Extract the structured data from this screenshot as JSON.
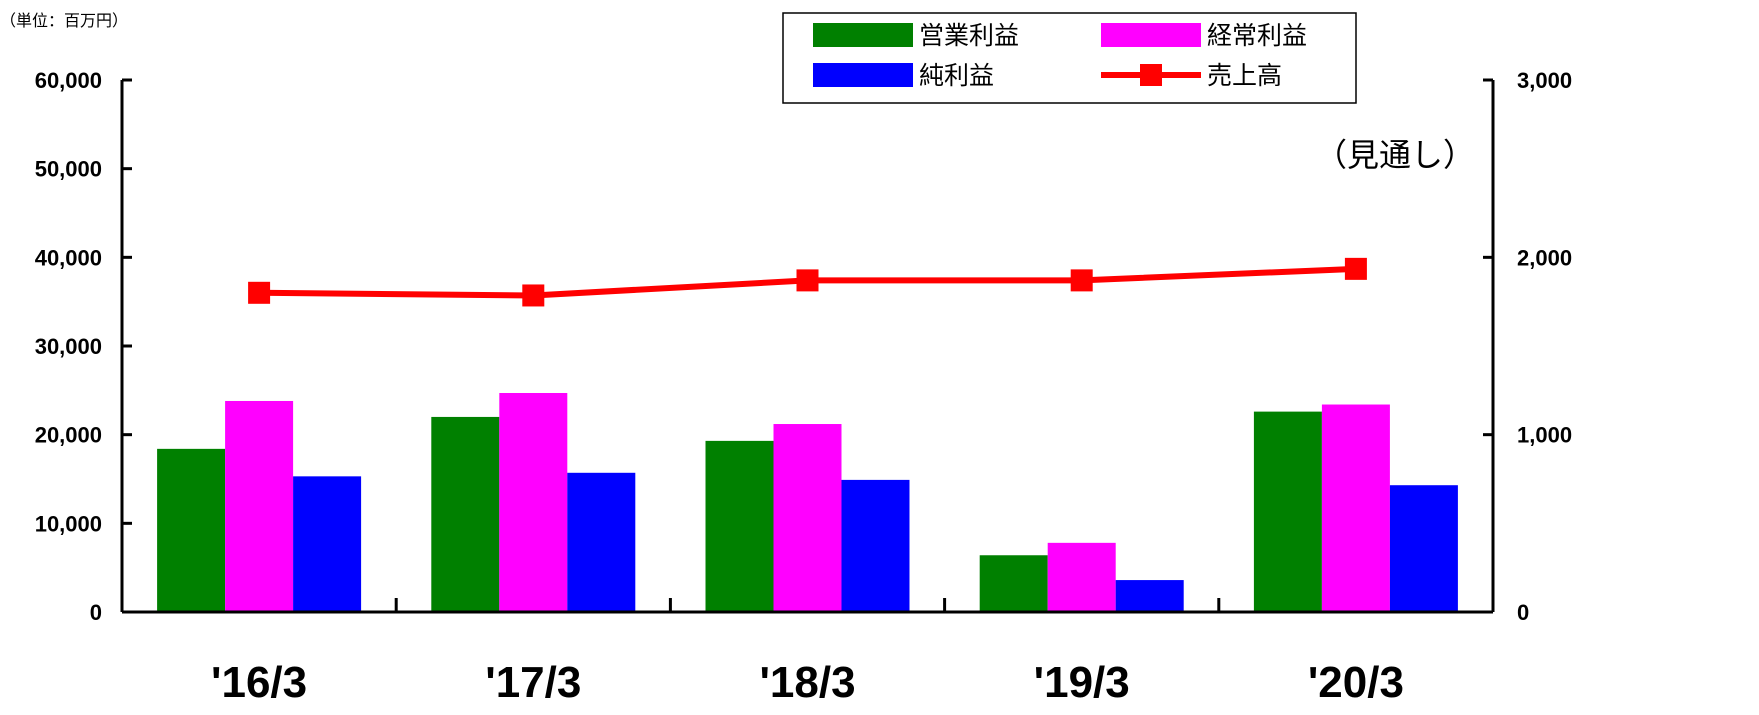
{
  "chart_data": {
    "type": "bar",
    "unit_label": "（単位：百万円）",
    "annotation": "（見通し）",
    "categories": [
      "'16/3",
      "'17/3",
      "'18/3",
      "'19/3",
      "'20/3"
    ],
    "series": [
      {
        "name": "営業利益",
        "kind": "bar",
        "axis": "right",
        "color": "#008000",
        "values": [
          920,
          1100,
          965,
          320,
          1130
        ]
      },
      {
        "name": "経常利益",
        "kind": "bar",
        "axis": "right",
        "color": "#ff00ff",
        "values": [
          1190,
          1235,
          1060,
          390,
          1170
        ]
      },
      {
        "name": "純利益",
        "kind": "bar",
        "axis": "right",
        "color": "#0000ff",
        "values": [
          765,
          785,
          745,
          180,
          715
        ]
      },
      {
        "name": "売上高",
        "kind": "line",
        "axis": "left",
        "color": "#ff0000",
        "values": [
          36000,
          35700,
          37400,
          37400,
          38700
        ]
      }
    ],
    "left_axis": {
      "min": 0,
      "max": 60000,
      "ticks": [
        0,
        10000,
        20000,
        30000,
        40000,
        50000,
        60000
      ],
      "tick_labels": [
        "0",
        "10,000",
        "20,000",
        "30,000",
        "40,000",
        "50,000",
        "60,000"
      ]
    },
    "right_axis": {
      "min": 0,
      "max": 3000,
      "ticks": [
        0,
        1000,
        2000,
        3000
      ],
      "tick_labels": [
        "0",
        "1,000",
        "2,000",
        "3,000"
      ]
    },
    "legend": {
      "position": "top-center",
      "order": [
        "営業利益",
        "経常利益",
        "純利益",
        "売上高"
      ]
    },
    "grid": false
  }
}
